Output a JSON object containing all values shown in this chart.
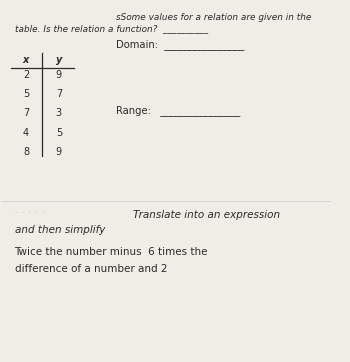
{
  "bg_color": "#f0ece6",
  "text_color": "#2b2b2b",
  "line1_prefix": "sSome values for a relation are given in the",
  "line2": "table. Is the relation a function?  __________",
  "domain_label": "Domain:  ________________",
  "range_label": "Range:   ________________",
  "table_header_x": "x",
  "table_header_y": "y",
  "table_rows": [
    [
      2,
      9
    ],
    [
      5,
      7
    ],
    [
      7,
      3
    ],
    [
      4,
      5
    ],
    [
      8,
      9
    ]
  ],
  "section2_prefix_color": "#aaaaaa",
  "section2_line1": "Translate into an expression",
  "section2_line2": "and then simplify",
  "section3_line1": "Twice the number minus  6 times the",
  "section3_line2": "difference of a number and 2"
}
